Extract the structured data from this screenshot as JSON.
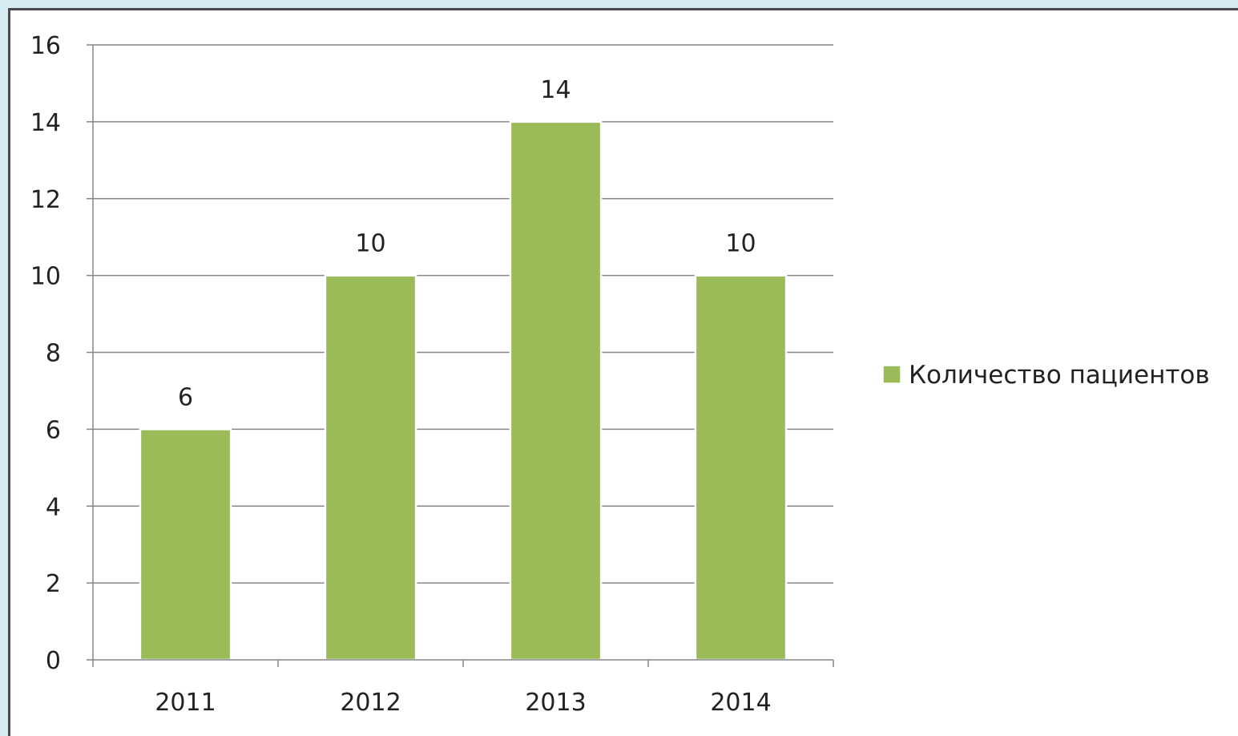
{
  "chart_data": {
    "type": "bar",
    "categories": [
      "2011",
      "2012",
      "2013",
      "2014"
    ],
    "series": [
      {
        "name": "Количество пациентов",
        "values": [
          6,
          10,
          14,
          10
        ]
      }
    ],
    "ylim": [
      0,
      16
    ],
    "yticks": [
      0,
      2,
      4,
      6,
      8,
      10,
      12,
      14,
      16
    ],
    "grid": true,
    "legend_position": "right",
    "data_labels": true
  },
  "colors": {
    "bar": "#9bbb59",
    "bar_edge": "#ffffff",
    "gridline": "#868686",
    "axis": "#868686",
    "background": "#d6ecf2"
  }
}
